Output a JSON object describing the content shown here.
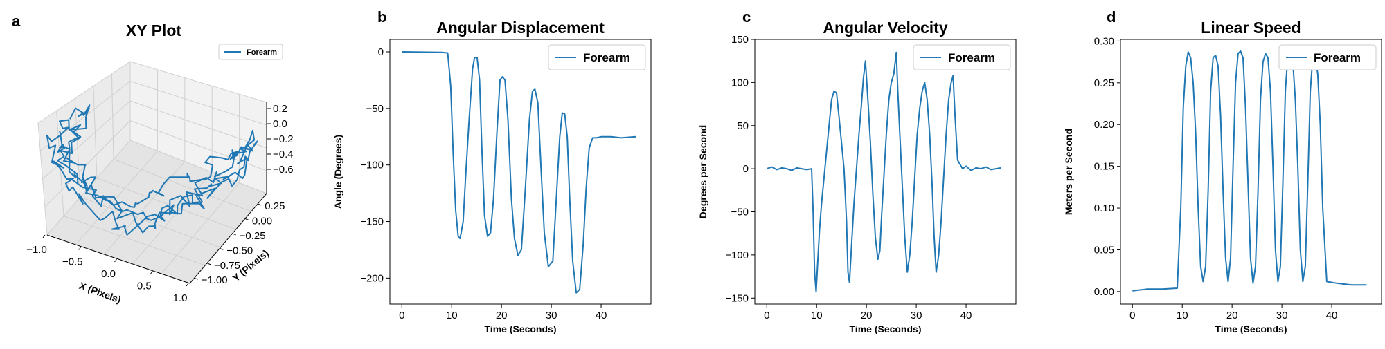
{
  "chart_data": [
    {
      "type": "line3d",
      "panel": "a",
      "title": "XY Plot",
      "xlabel": "X (Pixels)",
      "ylabel": "Y (Pixels)",
      "zlabel": "",
      "legend": [
        "Forearm"
      ],
      "legend_position": "top-right",
      "xticks": [
        "−1.0",
        "−0.5",
        "0.0",
        "0.5",
        "1.0"
      ],
      "yticks": [
        "−1.00",
        "−0.75",
        "−0.50",
        "−0.25",
        "0.00",
        "0.25"
      ],
      "zticks": [
        "−0.6",
        "−0.4",
        "−0.2",
        "0.0",
        "0.2"
      ],
      "xlim": [
        -1.0,
        1.0
      ],
      "ylim": [
        -1.0,
        0.35
      ],
      "zlim": [
        -0.65,
        0.25
      ],
      "series": [
        {
          "name": "Forearm",
          "color": "#1f77b4"
        }
      ]
    },
    {
      "type": "line",
      "panel": "b",
      "title": "Angular Displacement",
      "xlabel": "Time (Seconds)",
      "ylabel": "Angle (Degrees)",
      "legend_position": "top-right",
      "xlim": [
        -2.4,
        50
      ],
      "ylim": [
        -223,
        11
      ],
      "xticks": [
        0,
        10,
        20,
        30,
        40
      ],
      "yticks": [
        0,
        -50,
        -100,
        -150,
        -200
      ],
      "ytick_labels": [
        "0",
        "−50",
        "−100",
        "−150",
        "−200"
      ],
      "grid": false,
      "series": [
        {
          "name": "Forearm",
          "color": "#1f77b4",
          "x": [
            0,
            8,
            9.2,
            9.8,
            10.3,
            10.8,
            11.3,
            11.7,
            12.3,
            12.8,
            13.5,
            14.2,
            14.6,
            15.1,
            15.6,
            16.1,
            16.6,
            17.2,
            17.8,
            18.4,
            19.1,
            19.7,
            20.2,
            20.7,
            21.3,
            22,
            22.6,
            23.3,
            24,
            24.8,
            25.6,
            26.2,
            26.7,
            27.3,
            27.9,
            28.6,
            29.4,
            30.3,
            31,
            31.7,
            32.2,
            32.7,
            33.2,
            33.7,
            34.3,
            35,
            35.7,
            36.4,
            37,
            37.6,
            38.3,
            39.1,
            40,
            42,
            44,
            47
          ],
          "y": [
            0,
            -0.5,
            -1,
            -30,
            -90,
            -140,
            -163,
            -165,
            -150,
            -110,
            -60,
            -15,
            -5,
            -5,
            -25,
            -90,
            -145,
            -163,
            -160,
            -130,
            -70,
            -25,
            -22,
            -25,
            -60,
            -130,
            -165,
            -180,
            -175,
            -120,
            -60,
            -35,
            -33,
            -45,
            -100,
            -160,
            -190,
            -185,
            -130,
            -75,
            -54,
            -55,
            -75,
            -130,
            -185,
            -213,
            -210,
            -170,
            -120,
            -85,
            -76,
            -76,
            -75,
            -75,
            -76,
            -75
          ]
        }
      ]
    },
    {
      "type": "line",
      "panel": "c",
      "title": "Angular Velocity",
      "xlabel": "Time (Seconds)",
      "ylabel": "Degrees per Second",
      "legend_position": "top-right",
      "xlim": [
        -2.4,
        50
      ],
      "ylim": [
        -157,
        150
      ],
      "xticks": [
        0,
        10,
        20,
        30,
        40
      ],
      "yticks": [
        150,
        100,
        50,
        0,
        -50,
        -100,
        -150
      ],
      "ytick_labels": [
        "150",
        "100",
        "50",
        "0",
        "−50",
        "−100",
        "−150"
      ],
      "grid": false,
      "series": [
        {
          "name": "Forearm",
          "color": "#1f77b4",
          "x": [
            0,
            1,
            2,
            3,
            4,
            5,
            6,
            7,
            8,
            9,
            9.3,
            9.6,
            9.9,
            10.2,
            10.6,
            11,
            11.5,
            12,
            12.5,
            13,
            13.5,
            14,
            14.5,
            15,
            15.5,
            16,
            16.3,
            16.6,
            17,
            17.5,
            18,
            18.5,
            19,
            19.4,
            19.8,
            20.3,
            20.8,
            21.3,
            21.8,
            22.3,
            22.7,
            23,
            23.5,
            24,
            24.5,
            25,
            25.5,
            26,
            26.3,
            26.7,
            27.2,
            27.7,
            28.2,
            28.7,
            29.2,
            29.7,
            30.2,
            30.7,
            31.2,
            31.7,
            32.2,
            32.7,
            33.2,
            33.6,
            34,
            34.5,
            35,
            35.5,
            36,
            36.5,
            37,
            37.4,
            37.8,
            38.3,
            38.8,
            39.3,
            40,
            41,
            42,
            43,
            44,
            45,
            46,
            47
          ],
          "y": [
            0,
            2,
            -1,
            1,
            0,
            -2,
            1,
            0,
            -1,
            0,
            -50,
            -120,
            -143,
            -110,
            -70,
            -40,
            -10,
            20,
            50,
            80,
            90,
            88,
            60,
            30,
            0,
            -60,
            -120,
            -132,
            -90,
            -40,
            0,
            40,
            75,
            105,
            125,
            80,
            30,
            -30,
            -80,
            -105,
            -95,
            -60,
            -10,
            40,
            80,
            100,
            110,
            135,
            90,
            40,
            -20,
            -80,
            -120,
            -100,
            -60,
            -10,
            40,
            70,
            90,
            100,
            80,
            40,
            -20,
            -80,
            -120,
            -100,
            -60,
            -10,
            40,
            80,
            100,
            108,
            60,
            10,
            5,
            0,
            3,
            -2,
            1,
            0,
            2,
            -1,
            0,
            1
          ]
        }
      ]
    },
    {
      "type": "line",
      "panel": "d",
      "title": "Linear Speed",
      "xlabel": "Time (Seconds)",
      "ylabel": "Meters per Second",
      "legend_position": "top-right",
      "xlim": [
        -2.4,
        50
      ],
      "ylim": [
        -0.015,
        0.302
      ],
      "xticks": [
        0,
        10,
        20,
        30,
        40
      ],
      "yticks": [
        0.0,
        0.05,
        0.1,
        0.15,
        0.2,
        0.25,
        0.3
      ],
      "ytick_labels": [
        "0.00",
        "0.05",
        "0.10",
        "0.15",
        "0.20",
        "0.25",
        "0.30"
      ],
      "grid": false,
      "series": [
        {
          "name": "Forearm",
          "color": "#1f77b4",
          "x": [
            0,
            3,
            6,
            9,
            9.7,
            10.2,
            10.7,
            11.2,
            11.7,
            12.2,
            12.7,
            13.2,
            13.7,
            14.2,
            14.7,
            15.2,
            15.7,
            16.2,
            16.7,
            17.2,
            17.7,
            18.2,
            18.7,
            19.2,
            19.7,
            20.2,
            20.7,
            21.2,
            21.7,
            22.2,
            22.7,
            23.2,
            23.7,
            24.2,
            24.7,
            25.2,
            25.7,
            26.2,
            26.7,
            27.2,
            27.7,
            28.2,
            28.7,
            29.2,
            29.7,
            30.2,
            30.7,
            31.2,
            31.7,
            32.2,
            32.7,
            33.2,
            33.7,
            34.2,
            34.7,
            35.2,
            35.7,
            36.2,
            36.7,
            37.2,
            37.7,
            38.2,
            39,
            41,
            44,
            47
          ],
          "y": [
            0.001,
            0.003,
            0.003,
            0.004,
            0.1,
            0.22,
            0.27,
            0.287,
            0.28,
            0.25,
            0.19,
            0.1,
            0.03,
            0.012,
            0.03,
            0.12,
            0.24,
            0.28,
            0.283,
            0.27,
            0.21,
            0.12,
            0.04,
            0.012,
            0.04,
            0.15,
            0.25,
            0.285,
            0.288,
            0.28,
            0.22,
            0.13,
            0.04,
            0.01,
            0.03,
            0.12,
            0.23,
            0.275,
            0.285,
            0.28,
            0.24,
            0.15,
            0.05,
            0.012,
            0.03,
            0.13,
            0.24,
            0.283,
            0.285,
            0.275,
            0.23,
            0.15,
            0.05,
            0.012,
            0.03,
            0.13,
            0.24,
            0.28,
            0.282,
            0.26,
            0.2,
            0.1,
            0.012,
            0.01,
            0.008,
            0.008
          ]
        }
      ]
    }
  ]
}
